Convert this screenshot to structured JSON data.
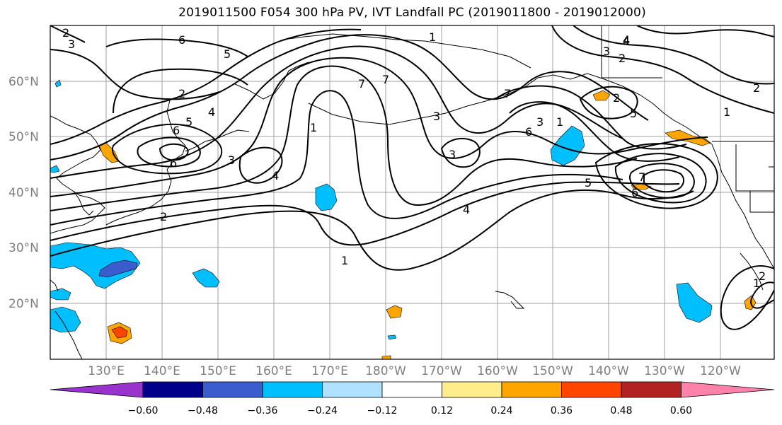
{
  "title": "2019011500 F054 300 hPa PV, IVT Landfall PC (2019011800 - 2019012000)",
  "lat_labels": [
    "60°N",
    "50°N",
    "40°N",
    "30°N",
    "20°N"
  ],
  "lon_labels": [
    "130°E",
    "140°E",
    "150°E",
    "160°E",
    "170°E",
    "180°W",
    "170°W",
    "160°W",
    "150°W",
    "140°W",
    "130°W",
    "120°W"
  ],
  "contour_labels": [
    "2",
    "3",
    "6",
    "5",
    "1",
    "7",
    "2",
    "4",
    "5",
    "6",
    "7",
    "3",
    "4",
    "1",
    "3",
    "4",
    "6",
    "7",
    "6",
    "5",
    "2",
    "3",
    "1",
    "3",
    "2",
    "5",
    "4",
    "1",
    "6",
    "7",
    "3",
    "2",
    "2",
    "1",
    "4",
    "1",
    "2"
  ],
  "colorbar": {
    "colors": [
      "#9a32cd",
      "#00008b",
      "#3a5ccc",
      "#00bfff",
      "#b0e2ff",
      "#ffffff",
      "#ffec8b",
      "#ffa500",
      "#ff4500",
      "#b22222",
      "#ff82ab"
    ],
    "ticks": [
      "−0.60",
      "−0.48",
      "−0.36",
      "−0.24",
      "−0.12",
      "0.12",
      "0.24",
      "0.36",
      "0.48",
      "0.60"
    ]
  },
  "colors": {
    "land": "#000000",
    "contour": "#000000",
    "grid": "#a0a0a0",
    "label": "#7f7f7f"
  }
}
